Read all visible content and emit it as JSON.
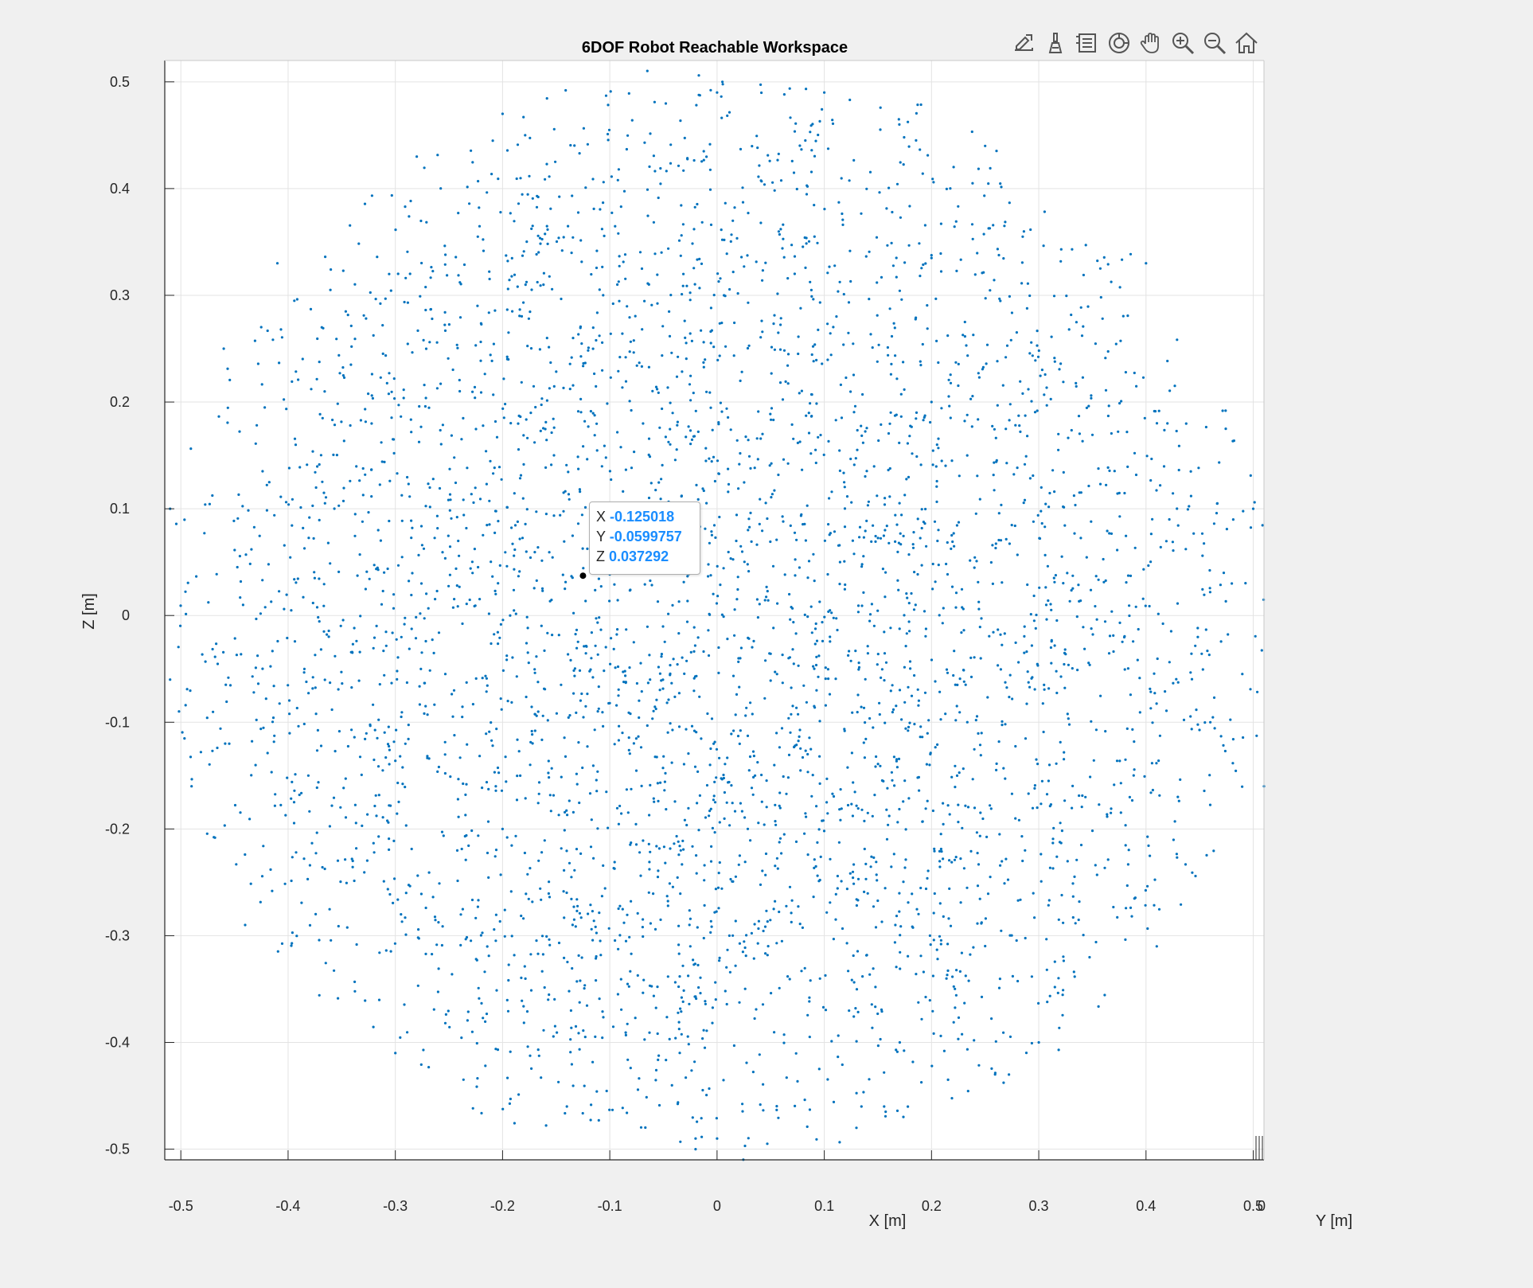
{
  "figure": {
    "background": "#f0f0f0",
    "toolbar": {
      "items": [
        {
          "name": "export-icon",
          "tooltip": "Export"
        },
        {
          "name": "brush-icon",
          "tooltip": "Brush/Select Data"
        },
        {
          "name": "datatip-icon",
          "tooltip": "Data Tips"
        },
        {
          "name": "rotate-3d-icon",
          "tooltip": "Rotate 3D"
        },
        {
          "name": "pan-icon",
          "tooltip": "Pan"
        },
        {
          "name": "zoom-in-icon",
          "tooltip": "Zoom In"
        },
        {
          "name": "zoom-out-icon",
          "tooltip": "Zoom Out"
        },
        {
          "name": "home-icon",
          "tooltip": "Restore View"
        }
      ]
    },
    "datatip": {
      "x_label": "X",
      "x_value": "-0.125018",
      "y_label": "Y",
      "y_value": "-0.0599757",
      "z_label": "Z",
      "z_value": "0.037292"
    }
  },
  "chart_data": {
    "type": "scatter",
    "title": "6DOF Robot Reachable Workspace",
    "xlabel": "X [m]",
    "ylabel": "Y [m]",
    "zlabel": "Z [m]",
    "view": "3-D axes viewed along the Y axis (X–Z projection)",
    "xlim": [
      -0.515,
      0.51
    ],
    "zlim": [
      -0.51,
      0.52
    ],
    "xticks": [
      -0.5,
      -0.4,
      -0.3,
      -0.2,
      -0.1,
      0,
      0.1,
      0.2,
      0.3,
      0.4,
      0.5
    ],
    "xtick_labels": [
      "-0.5",
      "-0.4",
      "-0.3",
      "-0.2",
      "-0.1",
      "0",
      "0.1",
      "0.2",
      "0.3",
      "0.4",
      "0.5"
    ],
    "zticks": [
      -0.5,
      -0.4,
      -0.3,
      -0.2,
      -0.1,
      0,
      0.1,
      0.2,
      0.3,
      0.4,
      0.5
    ],
    "ztick_labels": [
      "-0.5",
      "-0.4",
      "-0.3",
      "-0.2",
      "-0.1",
      "0",
      "0.1",
      "0.2",
      "0.3",
      "0.4",
      "0.5"
    ],
    "y_axis_visible_tick_label": "0",
    "grid": true,
    "series": [
      {
        "color": "#0072bd",
        "marker": "dot",
        "approx_point_count": 4000,
        "distribution": "uniform random samples inside a sphere of radius ~0.52 m centered at the origin",
        "sample_points_xz": [
          [
            -0.125018,
            0.037292
          ],
          [
            0.005,
            0.5
          ],
          [
            0.0,
            0.49
          ],
          [
            0.1,
            0.49
          ],
          [
            -0.2,
            0.47
          ],
          [
            0.17,
            0.46
          ],
          [
            -0.46,
            0.25
          ],
          [
            -0.51,
            0.1
          ],
          [
            -0.51,
            -0.06
          ],
          [
            -0.49,
            -0.16
          ],
          [
            0.5,
            0.1
          ],
          [
            0.51,
            -0.16
          ],
          [
            0.48,
            0.03
          ],
          [
            0.46,
            -0.1
          ],
          [
            -0.02,
            -0.49
          ],
          [
            -0.02,
            -0.5
          ],
          [
            0.0,
            -0.49
          ],
          [
            -0.14,
            -0.46
          ],
          [
            0.13,
            -0.48
          ],
          [
            0.42,
            0.18
          ],
          [
            -0.44,
            -0.29
          ],
          [
            0.41,
            -0.31
          ],
          [
            0.4,
            0.33
          ],
          [
            -0.41,
            0.33
          ],
          [
            0.25,
            0.44
          ],
          [
            -0.28,
            0.43
          ],
          [
            0.3,
            -0.4
          ],
          [
            -0.3,
            -0.41
          ],
          [
            0.2,
            0.2
          ],
          [
            -0.2,
            -0.2
          ]
        ]
      }
    ],
    "highlighted_point": {
      "x": -0.125018,
      "y": -0.0599757,
      "z": 0.037292
    }
  }
}
